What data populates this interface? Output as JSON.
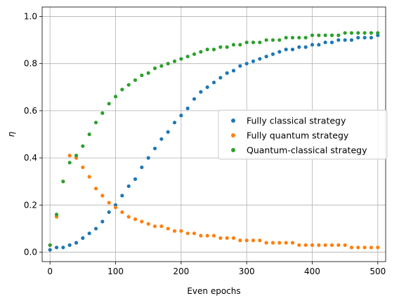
{
  "chart_data": {
    "type": "scatter",
    "title": "",
    "xlabel": "Even epochs",
    "ylabel": "η",
    "xlim": [
      -12,
      512
    ],
    "ylim": [
      -0.04,
      1.04
    ],
    "xticks": [
      0,
      100,
      200,
      300,
      400,
      500
    ],
    "yticks": [
      0.0,
      0.2,
      0.4,
      0.6,
      0.8,
      1.0
    ],
    "grid": true,
    "legend_position": "center-right",
    "series": [
      {
        "name": "Fully classical strategy",
        "color": "#1f77b4",
        "x": [
          0,
          10,
          20,
          30,
          40,
          50,
          60,
          70,
          80,
          90,
          100,
          110,
          120,
          130,
          140,
          150,
          160,
          170,
          180,
          190,
          200,
          210,
          220,
          230,
          240,
          250,
          260,
          270,
          280,
          290,
          300,
          310,
          320,
          330,
          340,
          350,
          360,
          370,
          380,
          390,
          400,
          410,
          420,
          430,
          440,
          450,
          460,
          470,
          480,
          490,
          500
        ],
        "y": [
          0.01,
          0.02,
          0.02,
          0.03,
          0.04,
          0.06,
          0.08,
          0.1,
          0.13,
          0.17,
          0.2,
          0.24,
          0.28,
          0.31,
          0.36,
          0.4,
          0.44,
          0.48,
          0.51,
          0.55,
          0.58,
          0.61,
          0.65,
          0.68,
          0.7,
          0.72,
          0.74,
          0.76,
          0.77,
          0.79,
          0.8,
          0.81,
          0.82,
          0.83,
          0.84,
          0.85,
          0.86,
          0.86,
          0.87,
          0.87,
          0.88,
          0.88,
          0.89,
          0.89,
          0.9,
          0.9,
          0.9,
          0.91,
          0.91,
          0.91,
          0.92
        ]
      },
      {
        "name": "Fully quantum strategy",
        "color": "#ff7f0e",
        "x": [
          0,
          10,
          20,
          30,
          40,
          50,
          60,
          70,
          80,
          90,
          100,
          110,
          120,
          130,
          140,
          150,
          160,
          170,
          180,
          190,
          200,
          210,
          220,
          230,
          240,
          250,
          260,
          270,
          280,
          290,
          300,
          310,
          320,
          330,
          340,
          350,
          360,
          370,
          380,
          390,
          400,
          410,
          420,
          430,
          440,
          450,
          460,
          470,
          480,
          490,
          500
        ],
        "y": [
          0.03,
          0.15,
          0.3,
          0.41,
          0.4,
          0.36,
          0.32,
          0.27,
          0.24,
          0.21,
          0.19,
          0.17,
          0.15,
          0.14,
          0.13,
          0.12,
          0.11,
          0.11,
          0.1,
          0.09,
          0.09,
          0.08,
          0.08,
          0.07,
          0.07,
          0.07,
          0.06,
          0.06,
          0.06,
          0.05,
          0.05,
          0.05,
          0.05,
          0.04,
          0.04,
          0.04,
          0.04,
          0.04,
          0.03,
          0.03,
          0.03,
          0.03,
          0.03,
          0.03,
          0.03,
          0.03,
          0.02,
          0.02,
          0.02,
          0.02,
          0.02
        ]
      },
      {
        "name": "Quantum-classical strategy",
        "color": "#2ca02c",
        "x": [
          0,
          10,
          20,
          30,
          40,
          50,
          60,
          70,
          80,
          90,
          100,
          110,
          120,
          130,
          140,
          150,
          160,
          170,
          180,
          190,
          200,
          210,
          220,
          230,
          240,
          250,
          260,
          270,
          280,
          290,
          300,
          310,
          320,
          330,
          340,
          350,
          360,
          370,
          380,
          390,
          400,
          410,
          420,
          430,
          440,
          450,
          460,
          470,
          480,
          490,
          500
        ],
        "y": [
          0.03,
          0.16,
          0.3,
          0.38,
          0.41,
          0.45,
          0.5,
          0.55,
          0.59,
          0.63,
          0.66,
          0.69,
          0.71,
          0.73,
          0.75,
          0.76,
          0.78,
          0.79,
          0.8,
          0.81,
          0.82,
          0.83,
          0.84,
          0.85,
          0.86,
          0.86,
          0.87,
          0.87,
          0.88,
          0.88,
          0.89,
          0.89,
          0.89,
          0.9,
          0.9,
          0.9,
          0.91,
          0.91,
          0.91,
          0.91,
          0.92,
          0.92,
          0.92,
          0.92,
          0.92,
          0.93,
          0.93,
          0.93,
          0.93,
          0.93,
          0.93
        ]
      }
    ]
  }
}
